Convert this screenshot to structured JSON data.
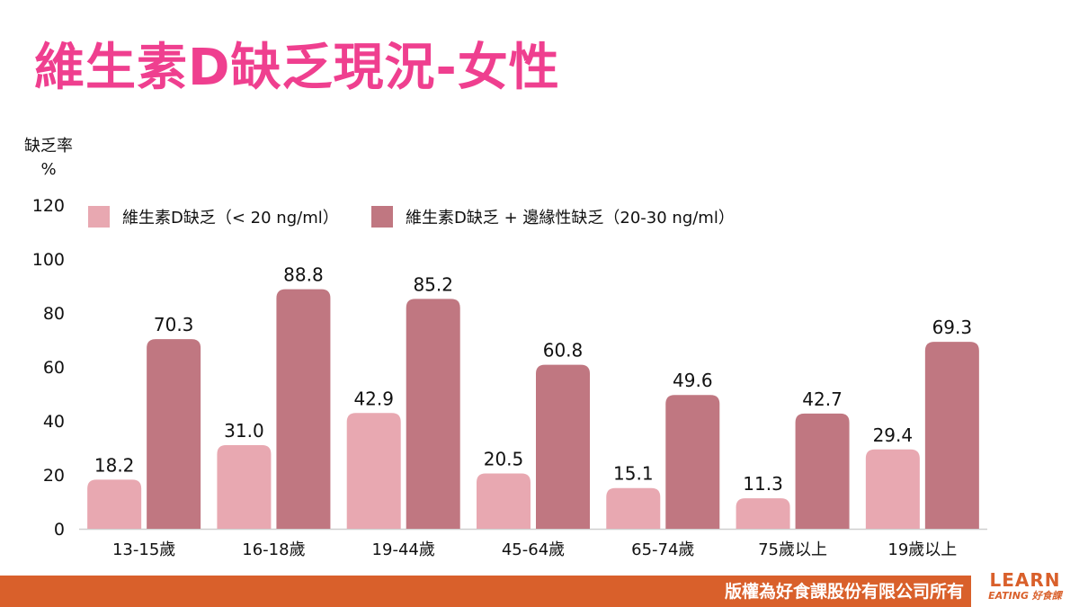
{
  "colors": {
    "title": "#ef3f8f",
    "series1": "#e8a8b1",
    "series2": "#c07781",
    "footer": "#d9602b"
  },
  "header": {
    "title": "維生素D缺乏現況-女性"
  },
  "axis": {
    "ylabel_line1": "缺乏率",
    "ylabel_line2": "%"
  },
  "chart_data": {
    "type": "bar",
    "title": "維生素D缺乏現況-女性",
    "ylabel": "缺乏率 %",
    "xlabel": "",
    "ylim": [
      0,
      120
    ],
    "yticks": [
      0,
      20,
      40,
      60,
      80,
      100,
      120
    ],
    "grid": false,
    "legend_position": "top",
    "categories": [
      "13-15歲",
      "16-18歲",
      "19-44歲",
      "45-64歲",
      "65-74歲",
      "75歲以上",
      "19歲以上"
    ],
    "series": [
      {
        "name": "維生素D缺乏（< 20 ng/ml）",
        "color": "#e8a8b1",
        "values": [
          18.2,
          31.0,
          42.9,
          20.5,
          15.1,
          11.3,
          29.4
        ]
      },
      {
        "name": "維生素D缺乏 + 邊緣性缺乏（20-30 ng/ml）",
        "color": "#c07781",
        "values": [
          70.3,
          88.8,
          85.2,
          60.8,
          49.6,
          42.7,
          69.3
        ]
      }
    ]
  },
  "footer": {
    "copyright": "版權為好食課股份有限公司所有",
    "logo_main": "LEARN",
    "logo_sub": "EATING 好食課"
  }
}
